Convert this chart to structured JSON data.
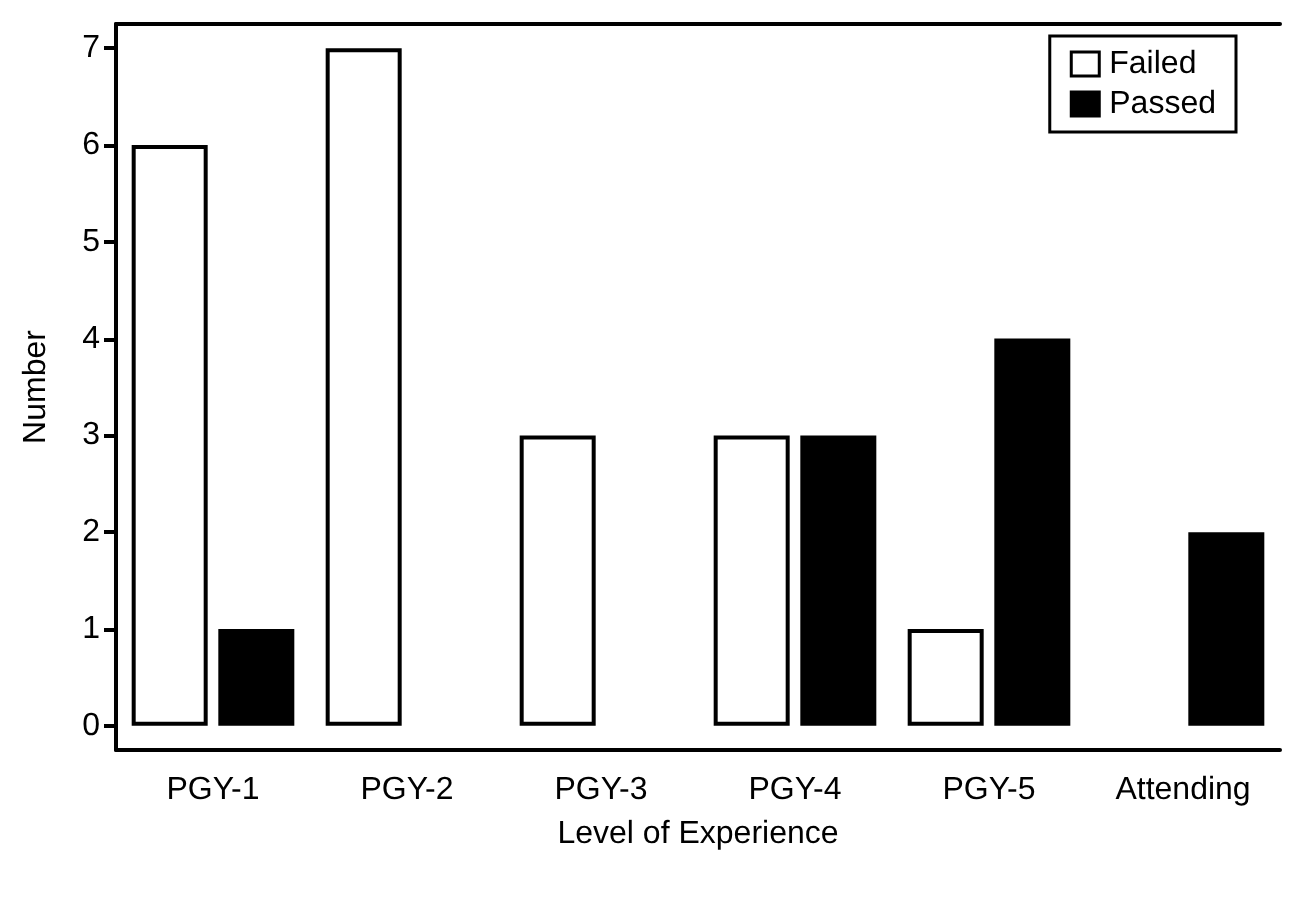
{
  "chart_data": {
    "type": "bar",
    "xlabel": "Level of Experience",
    "ylabel": "Number",
    "categories": [
      "PGY-1",
      "PGY-2",
      "PGY-3",
      "PGY-4",
      "PGY-5",
      "Attending"
    ],
    "series": [
      {
        "name": "Failed",
        "color": "#ffffff",
        "values": [
          6,
          7,
          3,
          3,
          1,
          0
        ]
      },
      {
        "name": "Passed",
        "color": "#000000",
        "values": [
          1,
          0,
          0,
          3,
          4,
          2
        ]
      }
    ],
    "ylim": [
      -0.25,
      7.25
    ],
    "yticks": [
      0,
      1,
      2,
      3,
      4,
      5,
      6,
      7
    ],
    "grid": false,
    "legend": "top right"
  }
}
